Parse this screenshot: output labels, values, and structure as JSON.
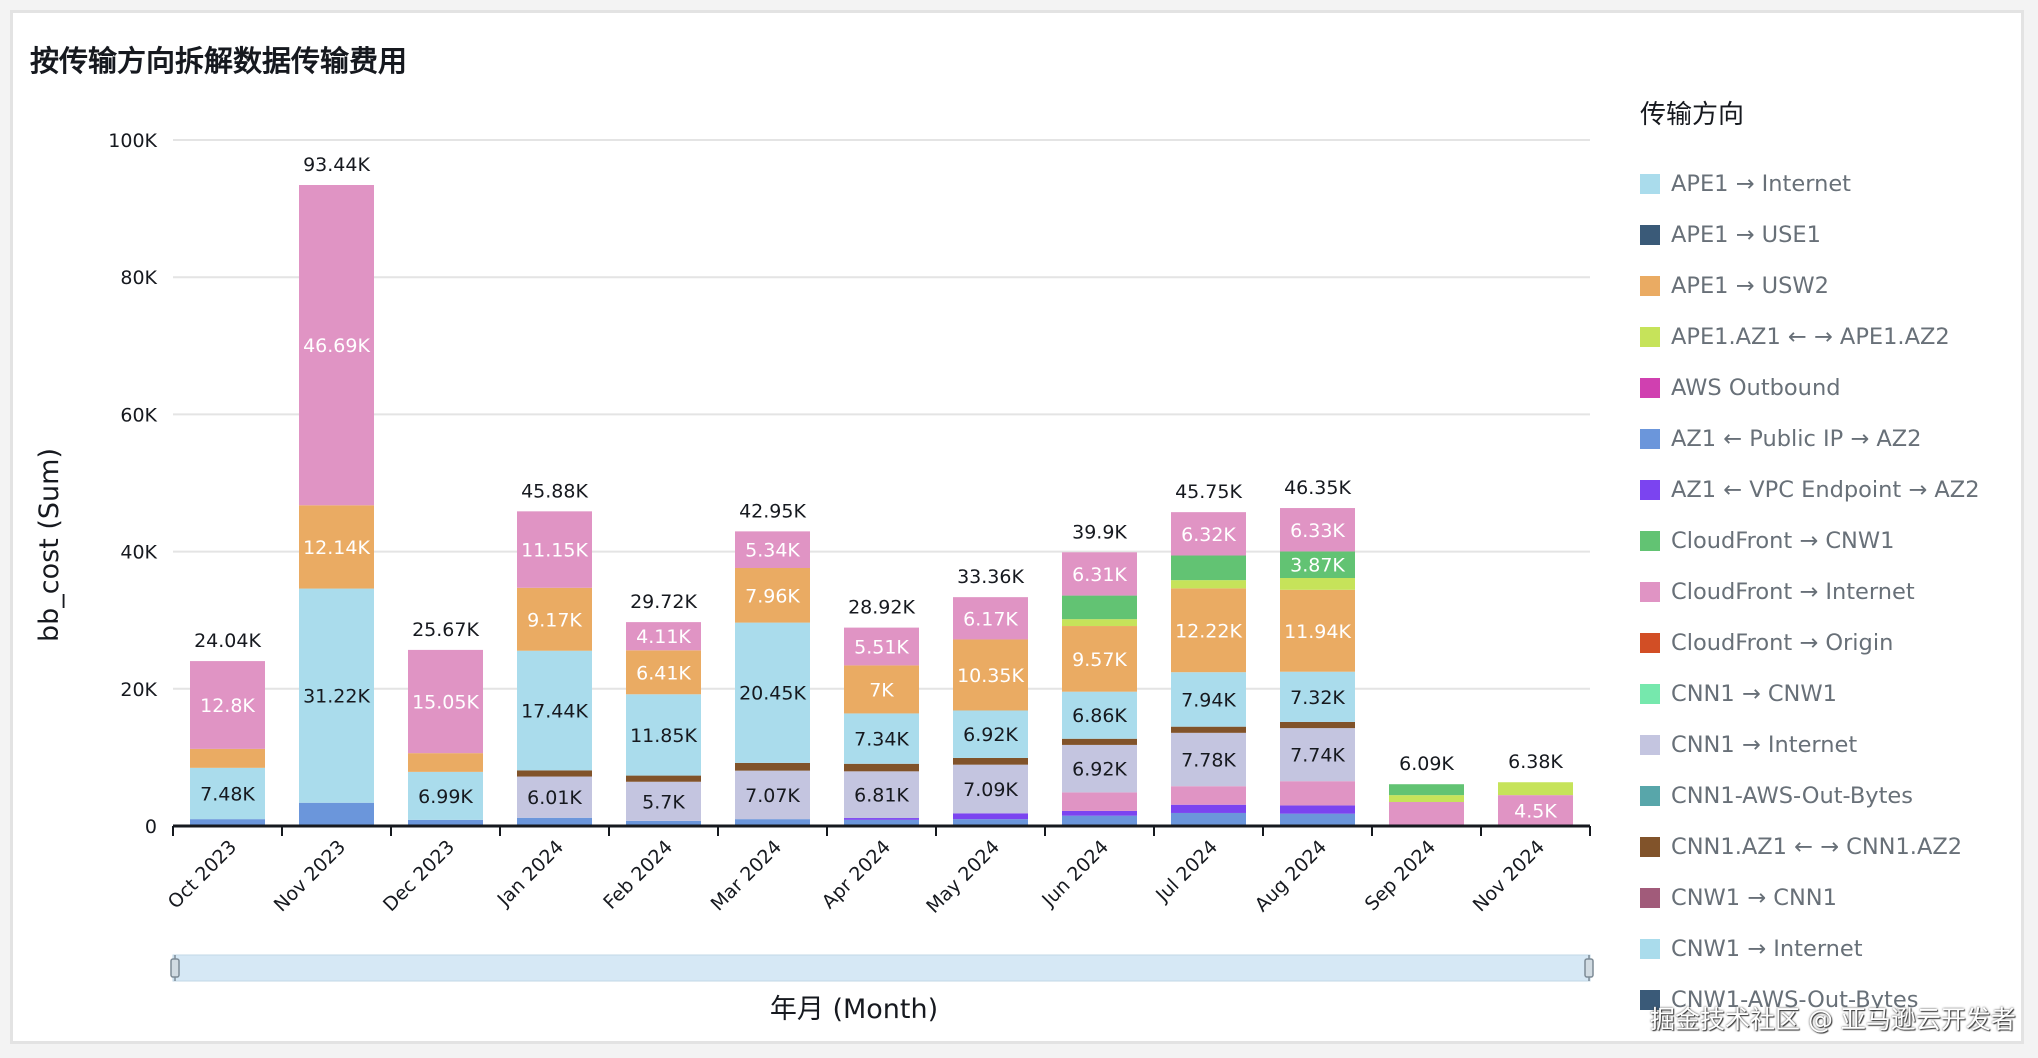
{
  "title": "按传输方向拆解数据传输费用",
  "watermark": "掘金技术社区 @ 亚马逊云开发者",
  "chart_data": {
    "type": "bar",
    "stacked": true,
    "title": "按传输方向拆解数据传输费用",
    "xlabel": "年月 (Month)",
    "ylabel": "bb_cost (Sum)",
    "ylim": [
      0,
      100000
    ],
    "yticks": [
      0,
      20000,
      40000,
      60000,
      80000,
      100000
    ],
    "ytick_labels": [
      "0",
      "20K",
      "40K",
      "60K",
      "80K",
      "100K"
    ],
    "grid": true,
    "legend_title": "传输方向",
    "legend_position": "right",
    "categories": [
      "Oct 2023",
      "Nov 2023",
      "Dec 2023",
      "Jan 2024",
      "Feb 2024",
      "Mar 2024",
      "Apr 2024",
      "May 2024",
      "Jun 2024",
      "Jul 2024",
      "Aug 2024",
      "Sep 2024",
      "Nov 2024"
    ],
    "totals": [
      24040,
      93440,
      25670,
      45880,
      29720,
      42950,
      28920,
      33360,
      39900,
      45750,
      46350,
      6090,
      6380
    ],
    "total_labels": [
      "24.04K",
      "93.44K",
      "25.67K",
      "45.88K",
      "29.72K",
      "42.95K",
      "28.92K",
      "33.36K",
      "39.9K",
      "45.75K",
      "46.35K",
      "6.09K",
      "6.38K"
    ],
    "series": [
      {
        "name": "APE1 → Internet",
        "color": "#aadcec"
      },
      {
        "name": "APE1 → USE1",
        "color": "#3a5a78"
      },
      {
        "name": "APE1 → USW2",
        "color": "#eaab63"
      },
      {
        "name": "APE1.AZ1 ← → APE1.AZ2",
        "color": "#c6e35a"
      },
      {
        "name": "AWS Outbound",
        "color": "#d040b0"
      },
      {
        "name": "AZ1 ← Public IP → AZ2",
        "color": "#6b96db"
      },
      {
        "name": "AZ1 ← VPC Endpoint → AZ2",
        "color": "#7b44f0"
      },
      {
        "name": "CloudFront → CNW1",
        "color": "#62c373"
      },
      {
        "name": "CloudFront → Internet",
        "color": "#e094c4"
      },
      {
        "name": "CloudFront → Origin",
        "color": "#d24e25"
      },
      {
        "name": "CNN1 → CNW1",
        "color": "#76e8ad"
      },
      {
        "name": "CNN1 → Internet",
        "color": "#c4c5e0"
      },
      {
        "name": "CNN1-AWS-Out-Bytes",
        "color": "#58a6aa"
      },
      {
        "name": "CNN1.AZ1 ← → CNN1.AZ2",
        "color": "#81532a"
      },
      {
        "name": "CNW1 → CNN1",
        "color": "#a15b7a"
      },
      {
        "name": "CNW1 → Internet",
        "color": "#aadcec"
      },
      {
        "name": "CNW1-AWS-Out-Bytes",
        "color": "#3a5a78"
      }
    ],
    "stacks": [
      [
        {
          "s": 5,
          "v": 1000
        },
        {
          "s": 0,
          "v": 7480,
          "label": "7.48K",
          "dark": true
        },
        {
          "s": 2,
          "v": 2760
        },
        {
          "s": 8,
          "v": 12800,
          "label": "12.8K"
        }
      ],
      [
        {
          "s": 5,
          "v": 3390
        },
        {
          "s": 0,
          "v": 31220,
          "label": "31.22K",
          "dark": true
        },
        {
          "s": 2,
          "v": 12140,
          "label": "12.14K"
        },
        {
          "s": 8,
          "v": 46690,
          "label": "46.69K"
        }
      ],
      [
        {
          "s": 5,
          "v": 900
        },
        {
          "s": 0,
          "v": 6990,
          "label": "6.99K",
          "dark": true
        },
        {
          "s": 2,
          "v": 2730
        },
        {
          "s": 8,
          "v": 15050,
          "label": "15.05K"
        }
      ],
      [
        {
          "s": 5,
          "v": 1200
        },
        {
          "s": 11,
          "v": 6010,
          "label": "6.01K",
          "dark": true
        },
        {
          "s": 13,
          "v": 900
        },
        {
          "s": 0,
          "v": 17440,
          "label": "17.44K",
          "dark": true
        },
        {
          "s": 2,
          "v": 9170,
          "label": "9.17K"
        },
        {
          "s": 8,
          "v": 11150,
          "label": "11.15K"
        }
      ],
      [
        {
          "s": 5,
          "v": 750
        },
        {
          "s": 11,
          "v": 5700,
          "label": "5.7K",
          "dark": true
        },
        {
          "s": 13,
          "v": 900
        },
        {
          "s": 0,
          "v": 11850,
          "label": "11.85K",
          "dark": true
        },
        {
          "s": 2,
          "v": 6410,
          "label": "6.41K"
        },
        {
          "s": 8,
          "v": 4110,
          "label": "4.11K"
        }
      ],
      [
        {
          "s": 5,
          "v": 1000
        },
        {
          "s": 11,
          "v": 7070,
          "label": "7.07K",
          "dark": true
        },
        {
          "s": 13,
          "v": 1130
        },
        {
          "s": 0,
          "v": 20450,
          "label": "20.45K",
          "dark": true
        },
        {
          "s": 2,
          "v": 7960,
          "label": "7.96K"
        },
        {
          "s": 8,
          "v": 5340,
          "label": "5.34K"
        }
      ],
      [
        {
          "s": 5,
          "v": 900
        },
        {
          "s": 6,
          "v": 260
        },
        {
          "s": 11,
          "v": 6810,
          "label": "6.81K",
          "dark": true
        },
        {
          "s": 13,
          "v": 1100
        },
        {
          "s": 0,
          "v": 7340,
          "label": "7.34K",
          "dark": true
        },
        {
          "s": 2,
          "v": 7000,
          "label": "7K"
        },
        {
          "s": 8,
          "v": 5510,
          "label": "5.51K"
        }
      ],
      [
        {
          "s": 5,
          "v": 1000
        },
        {
          "s": 6,
          "v": 850
        },
        {
          "s": 11,
          "v": 7090,
          "label": "7.09K",
          "dark": true
        },
        {
          "s": 13,
          "v": 980
        },
        {
          "s": 0,
          "v": 6920,
          "label": "6.92K",
          "dark": true
        },
        {
          "s": 2,
          "v": 10350,
          "label": "10.35K"
        },
        {
          "s": 8,
          "v": 6170,
          "label": "6.17K"
        }
      ],
      [
        {
          "s": 5,
          "v": 1500
        },
        {
          "s": 6,
          "v": 700
        },
        {
          "s": 8,
          "v": 2700
        },
        {
          "s": 11,
          "v": 6920,
          "label": "6.92K",
          "dark": true
        },
        {
          "s": 13,
          "v": 900
        },
        {
          "s": 0,
          "v": 6860,
          "label": "6.86K",
          "dark": true
        },
        {
          "s": 2,
          "v": 9570,
          "label": "9.57K"
        },
        {
          "s": 3,
          "v": 1000
        },
        {
          "s": 7,
          "v": 3440
        },
        {
          "s": 8,
          "v": 6310,
          "label": "6.31K"
        }
      ],
      [
        {
          "s": 5,
          "v": 1900
        },
        {
          "s": 6,
          "v": 1200
        },
        {
          "s": 8,
          "v": 2700
        },
        {
          "s": 11,
          "v": 7780,
          "label": "7.78K",
          "dark": true
        },
        {
          "s": 13,
          "v": 900
        },
        {
          "s": 0,
          "v": 7940,
          "label": "7.94K",
          "dark": true
        },
        {
          "s": 2,
          "v": 12220,
          "label": "12.22K"
        },
        {
          "s": 3,
          "v": 1200
        },
        {
          "s": 7,
          "v": 3590
        },
        {
          "s": 8,
          "v": 6320,
          "label": "6.32K"
        }
      ],
      [
        {
          "s": 5,
          "v": 1800
        },
        {
          "s": 6,
          "v": 1200
        },
        {
          "s": 8,
          "v": 3530
        },
        {
          "s": 11,
          "v": 7740,
          "label": "7.74K",
          "dark": true
        },
        {
          "s": 13,
          "v": 900
        },
        {
          "s": 0,
          "v": 7320,
          "label": "7.32K",
          "dark": true
        },
        {
          "s": 2,
          "v": 11940,
          "label": "11.94K"
        },
        {
          "s": 3,
          "v": 1720
        },
        {
          "s": 7,
          "v": 3870,
          "label": "3.87K"
        },
        {
          "s": 8,
          "v": 6330,
          "label": "6.33K"
        }
      ],
      [
        {
          "s": 11,
          "v": 200
        },
        {
          "s": 8,
          "v": 3300
        },
        {
          "s": 3,
          "v": 1000
        },
        {
          "s": 7,
          "v": 1590
        }
      ],
      [
        {
          "s": 8,
          "v": 4500,
          "label": "4.5K"
        },
        {
          "s": 3,
          "v": 1880
        }
      ]
    ]
  }
}
